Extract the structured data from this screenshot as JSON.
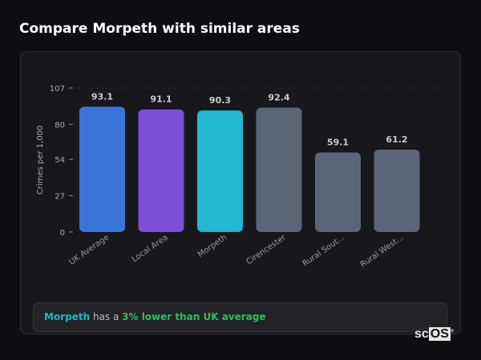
{
  "title": "Compare Morpeth with similar areas",
  "chart_data": {
    "type": "bar",
    "title": "",
    "xlabel": "",
    "ylabel": "Crimes per 1,000",
    "ylim": [
      0,
      107
    ],
    "yticks": [
      0,
      27,
      54,
      80,
      107
    ],
    "grid": "top dashed line only",
    "categories": [
      "UK Average",
      "Local Area",
      "Morpeth",
      "Cirencester",
      "Rural Sout...",
      "Rural West..."
    ],
    "values": [
      93.1,
      91.1,
      90.3,
      92.4,
      59.1,
      61.2
    ],
    "colors": [
      "#3b74d9",
      "#7b4fd6",
      "#22b8d0",
      "#5b6577",
      "#5b6577",
      "#5b6577"
    ]
  },
  "insight": {
    "place": "Morpeth",
    "middle": " has a ",
    "difference": "3% lower than UK average"
  },
  "logo": {
    "text_a": "sc",
    "text_b": "OS",
    "mark": "®"
  }
}
